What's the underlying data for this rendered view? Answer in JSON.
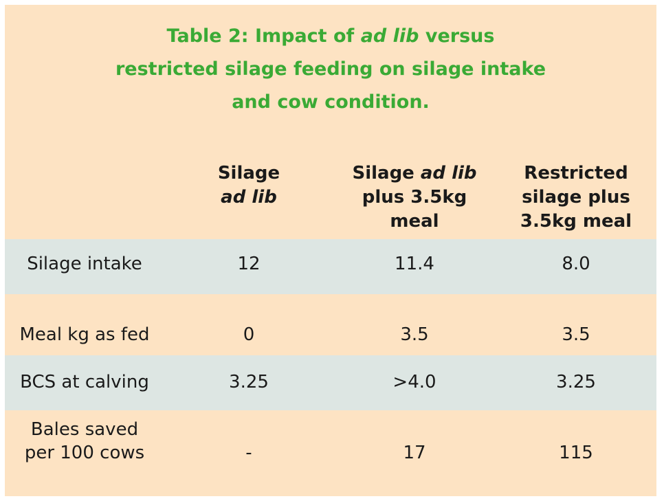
{
  "title": {
    "line1_pre": "Table 2: Impact of ",
    "line1_em": "ad lib",
    "line1_post": " versus",
    "line2": "restricted silage feeding on silage intake",
    "line3": "and cow condition."
  },
  "columns": [
    {
      "line1": "Silage",
      "line2_em": "ad lib"
    },
    {
      "line1_pre": "Silage ",
      "line1_em": "ad lib",
      "line2": "plus 3.5kg",
      "line3": "meal"
    },
    {
      "line1": "Restricted",
      "line2": "silage plus",
      "line3": "3.5kg meal"
    }
  ],
  "rows": [
    {
      "label": "Silage intake",
      "values": [
        "12",
        "11.4",
        "8.0"
      ]
    },
    {
      "label": "Meal kg as fed",
      "values": [
        "0",
        "3.5",
        "3.5"
      ]
    },
    {
      "label": "BCS at calving",
      "values": [
        "3.25",
        ">4.0",
        "3.25"
      ]
    },
    {
      "label_line1": "Bales saved",
      "label_line2": "per 100 cows",
      "values": [
        "-",
        "17",
        "115"
      ]
    }
  ],
  "colors": {
    "panel": "#fde3c3",
    "band": "#dde6e3",
    "title": "#3aaa35"
  }
}
